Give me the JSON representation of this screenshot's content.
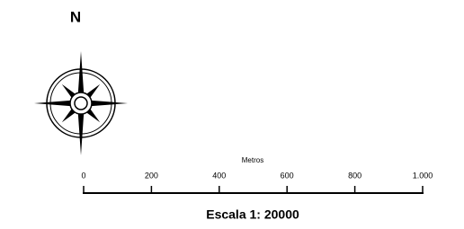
{
  "north": {
    "label": "N"
  },
  "scale_bar": {
    "unit": "Metros",
    "ticks": [
      0,
      200,
      400,
      600,
      800,
      {
        "value": 1000,
        "label": "1.000"
      }
    ],
    "caption": "Escala 1: 20000"
  }
}
